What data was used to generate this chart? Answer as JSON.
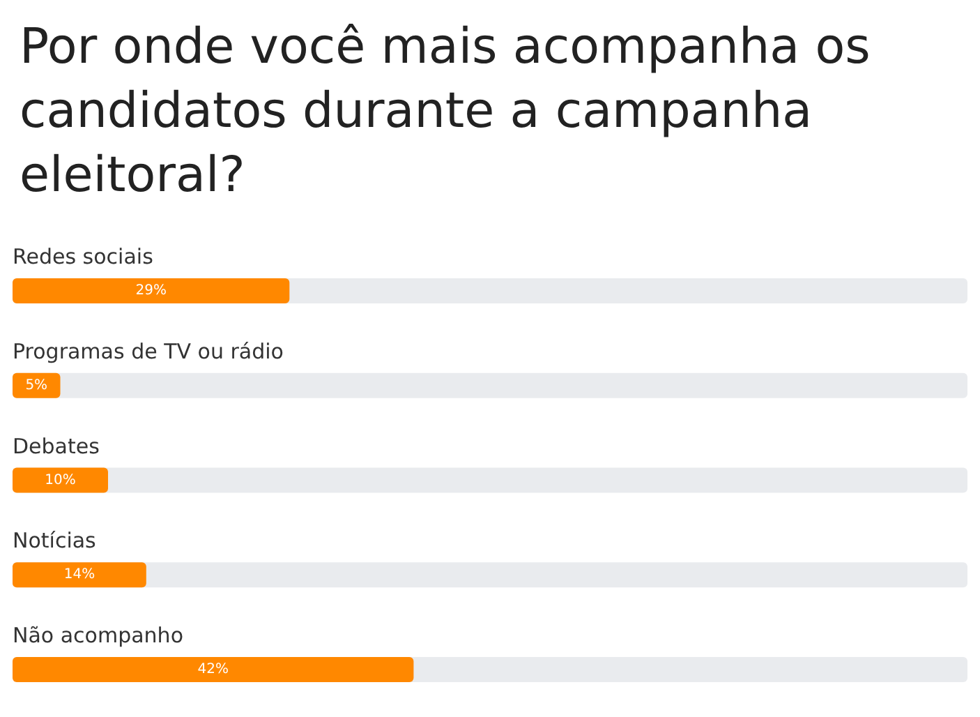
{
  "chart_data": {
    "type": "bar",
    "orientation": "horizontal",
    "title": "Por onde você mais acompanha os candidatos durante a campanha eleitoral?",
    "categories": [
      "Redes sociais",
      "Programas de TV ou rádio",
      "Debates",
      "Notícias",
      "Não acompanho"
    ],
    "values": [
      29,
      5,
      10,
      14,
      42
    ],
    "value_labels": [
      "29%",
      "5%",
      "10%",
      "14%",
      "42%"
    ],
    "color": "#ff8800",
    "xlim": [
      0,
      100
    ]
  }
}
